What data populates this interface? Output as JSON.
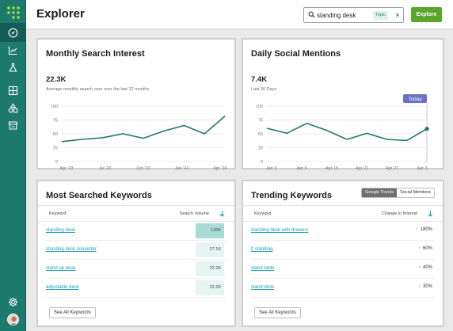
{
  "app": {
    "title": "Explorer"
  },
  "search": {
    "value": "standing desk",
    "placeholder": "",
    "badge": "Topic",
    "clear": "×",
    "button": "Explore"
  },
  "sidebar": {
    "items": [
      {
        "icon": "compass-icon",
        "active": true
      },
      {
        "icon": "bar-chart-icon",
        "active": false
      },
      {
        "icon": "flask-icon",
        "active": false
      },
      {
        "icon": "grid-icon",
        "active": false
      },
      {
        "icon": "shapes-icon",
        "active": false
      },
      {
        "icon": "storefront-icon",
        "active": false
      },
      {
        "icon": "gear-icon",
        "active": false
      }
    ]
  },
  "colors": {
    "brand": "#1f7a6e",
    "line": "#1f7a6e",
    "accent": "#5aa62d",
    "link": "#1a9fb5",
    "highlight": "#6b6fc8"
  },
  "monthly": {
    "title": "Monthly Search Interest",
    "metric": "22.3K",
    "subtext": "Average monthly search over over the last 12 months",
    "chart_data": {
      "type": "line",
      "x_ticks": [
        "Apr '23",
        "Jul '23",
        "Oct '23",
        "Jan '24",
        "Apr '24"
      ],
      "y_ticks": [
        0,
        25,
        50,
        75,
        100
      ],
      "ylim": [
        0,
        100
      ],
      "values": [
        36,
        40,
        43,
        50,
        42,
        55,
        65,
        50,
        82
      ]
    }
  },
  "daily": {
    "title": "Daily Social Mentions",
    "metric": "7.4K",
    "subtext": "Last 30 Days",
    "today_label": "Today",
    "chart_data": {
      "type": "line",
      "x_ticks": [
        "Apr 3",
        "Apr 9",
        "Apr 15",
        "Apr 21",
        "Apr 27",
        "Apr 3"
      ],
      "y_ticks": [
        0,
        25,
        50,
        75,
        100
      ],
      "ylim": [
        0,
        100
      ],
      "values": [
        60,
        51,
        69,
        56,
        40,
        51,
        40,
        38,
        59
      ]
    }
  },
  "searched": {
    "title": "Most Searched Keywords",
    "col_keyword": "Keyword",
    "col_value": "Search Volume",
    "rows": [
      {
        "keyword": "standing desk",
        "value": "135K",
        "shade": "#a9dcd7"
      },
      {
        "keyword": "standing desk converter",
        "value": "27.1K",
        "shade": "#e6f4f2"
      },
      {
        "keyword": "stand up desk",
        "value": "22.2K",
        "shade": "#e6f4f2"
      },
      {
        "keyword": "adjustable desk",
        "value": "22.2K",
        "shade": "#e6f4f2"
      }
    ],
    "see_all": "See All Keywords"
  },
  "trending": {
    "title": "Trending Keywords",
    "toggle": {
      "on": "Google Trends",
      "off": "Social Mentions"
    },
    "col_keyword": "Keyword",
    "col_value": "Change in Interest",
    "rows": [
      {
        "keyword": "standing desk with drawers",
        "value": "180%"
      },
      {
        "keyword": "lt standing",
        "value": "60%"
      },
      {
        "keyword": "stand table",
        "value": "40%"
      },
      {
        "keyword": "stand desk",
        "value": "30%"
      }
    ],
    "see_all": "See All Keywords"
  }
}
